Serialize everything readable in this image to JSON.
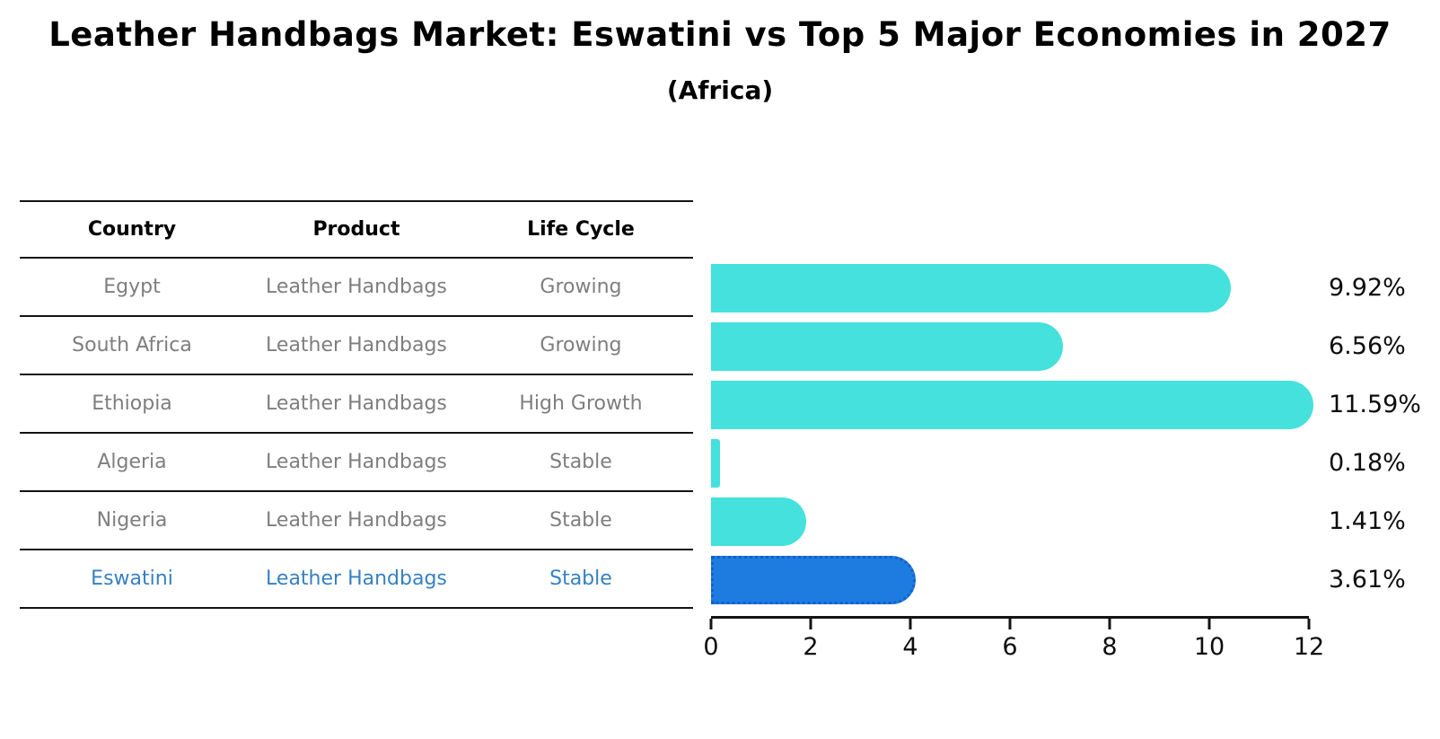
{
  "title": "Leather Handbags Market: Eswatini vs Top 5 Major Economies in 2027",
  "subtitle": "(Africa)",
  "table": {
    "headers": [
      "Country",
      "Product",
      "Life Cycle"
    ],
    "rows": [
      {
        "country": "Egypt",
        "product": "Leather Handbags",
        "life_cycle": "Growing",
        "highlight": false
      },
      {
        "country": "South Africa",
        "product": "Leather Handbags",
        "life_cycle": "Growing",
        "highlight": false
      },
      {
        "country": "Ethiopia",
        "product": "Leather Handbags",
        "life_cycle": "High Growth",
        "highlight": false
      },
      {
        "country": "Algeria",
        "product": "Leather Handbags",
        "life_cycle": "Stable",
        "highlight": false
      },
      {
        "country": "Nigeria",
        "product": "Leather Handbags",
        "life_cycle": "Stable",
        "highlight": false
      },
      {
        "country": "Eswatini",
        "product": "Leather Handbags",
        "life_cycle": "Stable",
        "highlight": true
      }
    ]
  },
  "chart_data": {
    "type": "bar",
    "orientation": "horizontal",
    "title": "Leather Handbags Market: Eswatini vs Top 5 Major Economies in 2027 (Africa)",
    "categories": [
      "Egypt",
      "South Africa",
      "Ethiopia",
      "Algeria",
      "Nigeria",
      "Eswatini"
    ],
    "values": [
      9.92,
      6.56,
      11.59,
      0.18,
      1.41,
      3.61
    ],
    "value_labels": [
      "9.92%",
      "6.56%",
      "11.59%",
      "0.18%",
      "1.41%",
      "3.61%"
    ],
    "xlabel": "",
    "ylabel": "",
    "xlim": [
      0,
      12
    ],
    "x_ticks": [
      0,
      2,
      4,
      6,
      8,
      10,
      12
    ],
    "grid": false,
    "legend": false,
    "highlight_index": 5
  },
  "colors": {
    "bar_default": "#45E1DC",
    "bar_highlight": "#1E7CE0",
    "bar_highlight_border": "#1460CB",
    "row_text": "#7E7E7E",
    "highlight_text": "#3680C2",
    "header_text": "#000000"
  }
}
